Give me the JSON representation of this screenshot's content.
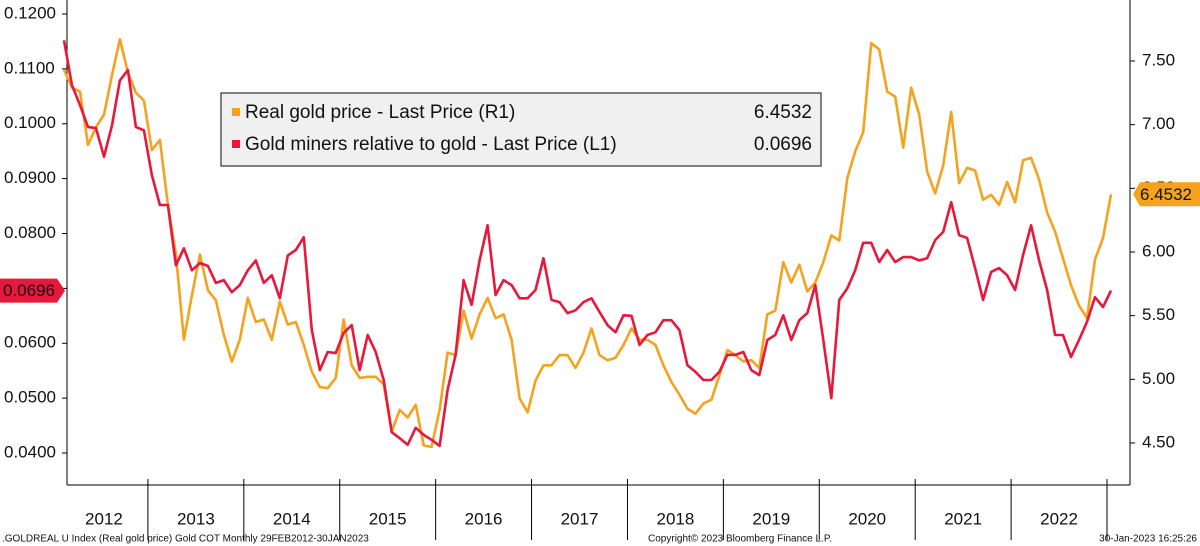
{
  "chart_data": {
    "type": "line",
    "categories": [
      "2012",
      null,
      null,
      null,
      null,
      null,
      null,
      null,
      null,
      null,
      null,
      "2013",
      null,
      null,
      null,
      null,
      null,
      null,
      null,
      null,
      null,
      null,
      null,
      "2014",
      null,
      null,
      null,
      null,
      null,
      null,
      null,
      null,
      null,
      null,
      null,
      "2015",
      null,
      null,
      null,
      null,
      null,
      null,
      null,
      null,
      null,
      null,
      null,
      "2016",
      null,
      null,
      null,
      null,
      null,
      null,
      null,
      null,
      null,
      null,
      null,
      "2017",
      null,
      null,
      null,
      null,
      null,
      null,
      null,
      null,
      null,
      null,
      null,
      "2018",
      null,
      null,
      null,
      null,
      null,
      null,
      null,
      null,
      null,
      null,
      null,
      "2019",
      null,
      null,
      null,
      null,
      null,
      null,
      null,
      null,
      null,
      null,
      null,
      "2020",
      null,
      null,
      null,
      null,
      null,
      null,
      null,
      null,
      null,
      null,
      null,
      "2021",
      null,
      null,
      null,
      null,
      null,
      null,
      null,
      null,
      null,
      null,
      null,
      "2022",
      null,
      null,
      null,
      null,
      null,
      null,
      null,
      null,
      null,
      null,
      null,
      null
    ],
    "series": [
      {
        "name": "Real gold price - Last Price (R1)",
        "color": "#f5a21e",
        "axis": "y2",
        "values": [
          7.43,
          7.29,
          7.26,
          6.84,
          6.98,
          7.08,
          7.39,
          7.67,
          7.41,
          7.25,
          7.19,
          6.8,
          6.88,
          6.37,
          5.98,
          5.31,
          5.66,
          5.98,
          5.7,
          5.62,
          5.35,
          5.14,
          5.31,
          5.64,
          5.45,
          5.47,
          5.31,
          5.61,
          5.43,
          5.45,
          5.27,
          5.06,
          4.94,
          4.93,
          5.01,
          5.47,
          5.11,
          5.01,
          5.02,
          5.02,
          4.96,
          4.59,
          4.76,
          4.7,
          4.8,
          4.48,
          4.47,
          4.76,
          5.21,
          5.19,
          5.54,
          5.32,
          5.51,
          5.64,
          5.48,
          5.51,
          5.31,
          4.85,
          4.74,
          4.99,
          5.11,
          5.11,
          5.19,
          5.19,
          5.09,
          5.21,
          5.4,
          5.19,
          5.15,
          5.17,
          5.27,
          5.4,
          5.31,
          5.31,
          5.27,
          5.11,
          4.98,
          4.88,
          4.77,
          4.73,
          4.81,
          4.84,
          5.03,
          5.23,
          5.19,
          5.14,
          5.15,
          5.09,
          5.51,
          5.54,
          5.92,
          5.76,
          5.9,
          5.69,
          5.76,
          5.92,
          6.13,
          6.09,
          6.58,
          6.79,
          6.94,
          7.64,
          7.59,
          7.26,
          7.22,
          6.82,
          7.29,
          7.08,
          6.63,
          6.46,
          6.68,
          7.1,
          6.54,
          6.66,
          6.64,
          6.41,
          6.45,
          6.37,
          6.55,
          6.39,
          6.72,
          6.74,
          6.57,
          6.31,
          6.16,
          5.95,
          5.74,
          5.58,
          5.48,
          5.94,
          6.11,
          6.4532
        ]
      },
      {
        "name": "Gold miners relative to gold - Last Price (L1)",
        "color": "#e8173c",
        "axis": "y",
        "values": [
          0.1152,
          0.107,
          0.1034,
          0.0994,
          0.0992,
          0.094,
          0.0997,
          0.1079,
          0.1098,
          0.0994,
          0.0988,
          0.0906,
          0.0852,
          0.0852,
          0.0742,
          0.0773,
          0.0733,
          0.0746,
          0.0741,
          0.071,
          0.0715,
          0.0693,
          0.0706,
          0.0733,
          0.0751,
          0.071,
          0.0724,
          0.0682,
          0.076,
          0.077,
          0.0793,
          0.0624,
          0.0551,
          0.0584,
          0.0582,
          0.0619,
          0.0633,
          0.0551,
          0.0615,
          0.0584,
          0.0533,
          0.0438,
          0.0427,
          0.0415,
          0.0446,
          0.0433,
          0.0424,
          0.0413,
          0.0515,
          0.0579,
          0.0715,
          0.067,
          0.0751,
          0.0815,
          0.0688,
          0.0715,
          0.0706,
          0.0682,
          0.0682,
          0.0697,
          0.0755,
          0.0679,
          0.0675,
          0.0655,
          0.066,
          0.0675,
          0.0682,
          0.0657,
          0.0633,
          0.062,
          0.0651,
          0.065,
          0.0597,
          0.0615,
          0.062,
          0.0642,
          0.0642,
          0.0624,
          0.056,
          0.0548,
          0.0533,
          0.0533,
          0.0548,
          0.0579,
          0.0579,
          0.0584,
          0.0551,
          0.0542,
          0.0606,
          0.0615,
          0.0651,
          0.0606,
          0.0642,
          0.0655,
          0.0706,
          0.0606,
          0.05,
          0.0679,
          0.07,
          0.0733,
          0.0783,
          0.0783,
          0.0748,
          0.077,
          0.0748,
          0.0757,
          0.0757,
          0.0751,
          0.0755,
          0.0788,
          0.0803,
          0.0857,
          0.0797,
          0.0792,
          0.0737,
          0.0679,
          0.073,
          0.0737,
          0.0724,
          0.0697,
          0.0761,
          0.0815,
          0.0751,
          0.0697,
          0.0615,
          0.0615,
          0.0575,
          0.0606,
          0.0639,
          0.0684,
          0.0666,
          0.0696
        ]
      }
    ],
    "ylim": [
      0.03417,
      0.12255
    ],
    "yticks": [
      {
        "value": 0.04,
        "label": "0.0400"
      },
      {
        "value": 0.05,
        "label": "0.0500"
      },
      {
        "value": 0.06,
        "label": "0.0600"
      },
      {
        "value": 0.07,
        "label": "0.0700"
      },
      {
        "value": 0.08,
        "label": "0.0800"
      },
      {
        "value": 0.09,
        "label": "0.0900"
      },
      {
        "value": 0.1,
        "label": "0.1000"
      },
      {
        "value": 0.11,
        "label": "0.1100"
      },
      {
        "value": 0.12,
        "label": "0.1200"
      }
    ],
    "y2lim": [
      4.17,
      7.979
    ],
    "y2ticks": [
      {
        "value": 4.5,
        "label": "4.50"
      },
      {
        "value": 5,
        "label": "5.00"
      },
      {
        "value": 5.5,
        "label": "5.50"
      },
      {
        "value": 6,
        "label": "6.00"
      },
      {
        "value": 6.5,
        "label": "6.50"
      },
      {
        "value": 7,
        "label": "7.00"
      },
      {
        "value": 7.5,
        "label": "7.50"
      }
    ],
    "grid": false,
    "legend": "top-left",
    "source": ".GOLDREAL U Index (Real gold price) Gold COT  Monthly 29FEB2012-30JAN2023",
    "copyright": "Copyright© 2023 Bloomberg Finance L.P.",
    "timestamp": "30-Jan-2023 16:25:26"
  }
}
